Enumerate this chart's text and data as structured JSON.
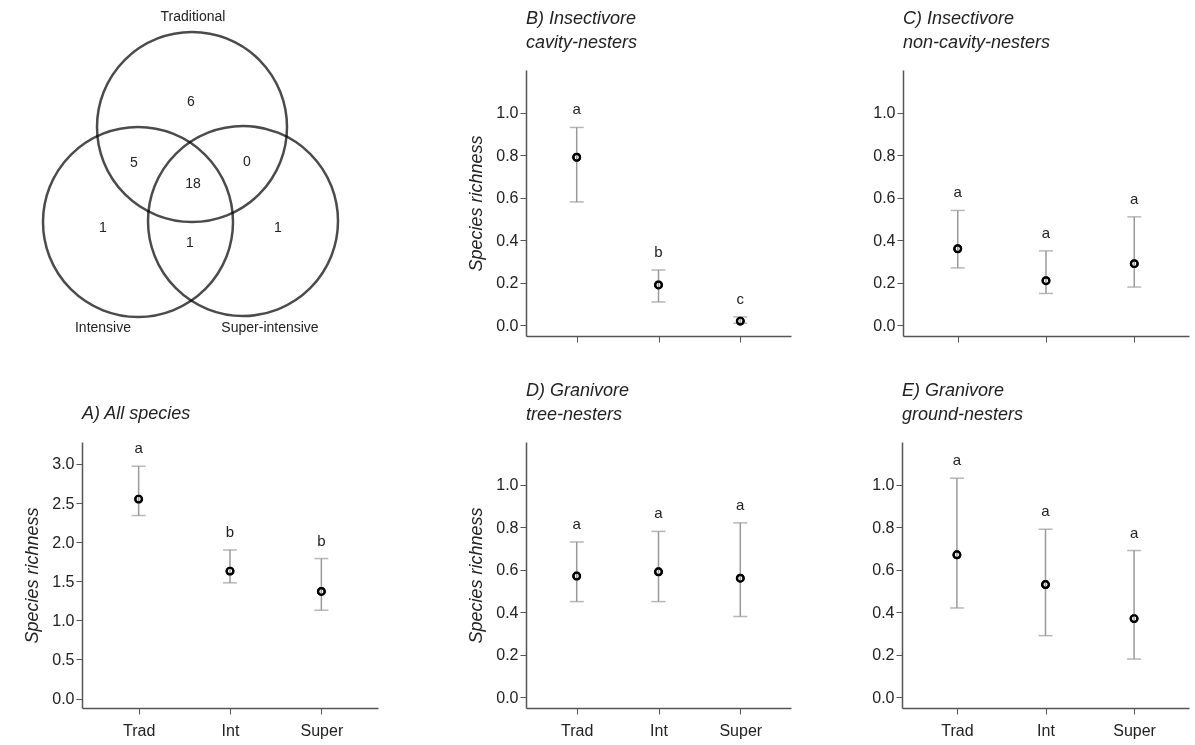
{
  "chart_data": [
    {
      "type": "other",
      "annotations": [
        "Traditional",
        "Intensive",
        "Super-intensive"
      ],
      "categories": [
        null,
        null,
        null,
        null,
        null,
        null,
        null
      ],
      "values": [
        6,
        5,
        0,
        18,
        1,
        1,
        1
      ],
      "data_labels": true
    },
    {
      "type": "scatter",
      "title": "B) Insectivore\ncavity-nesters",
      "ylabel": "Species richness",
      "categories": [
        null,
        null,
        null
      ],
      "color": "#000000",
      "marker": "circle",
      "tick_labels": "y",
      "values": [
        0.79,
        0.19,
        0.02
      ],
      "errors": [
        [
          0.58,
          0.93
        ],
        [
          0.11,
          0.26
        ],
        [
          0.01,
          0.04
        ]
      ],
      "ylim": [
        -0.05,
        1.2
      ],
      "yticks": [
        {
          "value": 0,
          "label": "0.0"
        },
        {
          "value": 0.2,
          "label": "0.2"
        },
        {
          "value": 0.4,
          "label": "0.4"
        },
        {
          "value": 0.6,
          "label": "0.6"
        },
        {
          "value": 0.8,
          "label": "0.8"
        },
        {
          "value": 1,
          "label": "1.0"
        }
      ],
      "annotations": [
        "a",
        "b",
        "c"
      ]
    },
    {
      "type": "scatter",
      "title": "C) Insectivore\nnon-cavity-nesters",
      "categories": [
        null,
        null,
        null
      ],
      "color": "#000000",
      "marker": "circle",
      "tick_labels": "y",
      "values": [
        0.36,
        0.21,
        0.29
      ],
      "errors": [
        [
          0.27,
          0.54
        ],
        [
          0.15,
          0.35
        ],
        [
          0.18,
          0.51
        ]
      ],
      "ylim": [
        -0.05,
        1.2
      ],
      "yticks": [
        {
          "value": 0,
          "label": "0.0"
        },
        {
          "value": 0.2,
          "label": "0.2"
        },
        {
          "value": 0.4,
          "label": "0.4"
        },
        {
          "value": 0.6,
          "label": "0.6"
        },
        {
          "value": 0.8,
          "label": "0.8"
        },
        {
          "value": 1,
          "label": "1.0"
        }
      ],
      "annotations": [
        "a",
        "a",
        "a"
      ]
    },
    {
      "type": "scatter",
      "title": "A) All species",
      "ylabel": "Species richness",
      "categories": [
        "Trad",
        "Int",
        "Super"
      ],
      "color": "#000000",
      "marker": "circle",
      "values": [
        2.55,
        1.63,
        1.37
      ],
      "errors": [
        [
          2.34,
          2.97
        ],
        [
          1.48,
          1.9
        ],
        [
          1.13,
          1.79
        ]
      ],
      "ylim": [
        -0.12,
        3.28
      ],
      "yticks": [
        {
          "value": 0,
          "label": "0.0"
        },
        {
          "value": 0.5,
          "label": "0.5"
        },
        {
          "value": 1,
          "label": "1.0"
        },
        {
          "value": 1.5,
          "label": "1.5"
        },
        {
          "value": 2,
          "label": "2.0"
        },
        {
          "value": 2.5,
          "label": "2.5"
        },
        {
          "value": 3,
          "label": "3.0"
        }
      ],
      "annotations": [
        "a",
        "b",
        "b"
      ]
    },
    {
      "type": "scatter",
      "title": "D) Granivore\ntree-nesters",
      "ylabel": "Species richness",
      "categories": [
        "Trad",
        "Int",
        "Super"
      ],
      "color": "#000000",
      "marker": "circle",
      "values": [
        0.57,
        0.59,
        0.56
      ],
      "errors": [
        [
          0.45,
          0.73
        ],
        [
          0.45,
          0.78
        ],
        [
          0.38,
          0.82
        ]
      ],
      "ylim": [
        -0.05,
        1.2
      ],
      "yticks": [
        {
          "value": 0,
          "label": "0.0"
        },
        {
          "value": 0.2,
          "label": "0.2"
        },
        {
          "value": 0.4,
          "label": "0.4"
        },
        {
          "value": 0.6,
          "label": "0.6"
        },
        {
          "value": 0.8,
          "label": "0.8"
        },
        {
          "value": 1,
          "label": "1.0"
        }
      ],
      "annotations": [
        "a",
        "a",
        "a"
      ]
    },
    {
      "type": "scatter",
      "title": "E) Granivore\nground-nesters",
      "categories": [
        "Trad",
        "Int",
        "Super"
      ],
      "color": "#000000",
      "marker": "circle",
      "values": [
        0.67,
        0.53,
        0.37
      ],
      "errors": [
        [
          0.42,
          1.03
        ],
        [
          0.29,
          0.79
        ],
        [
          0.18,
          0.69
        ]
      ],
      "ylim": [
        -0.05,
        1.2
      ],
      "yticks": [
        {
          "value": 0,
          "label": "0.0"
        },
        {
          "value": 0.2,
          "label": "0.2"
        },
        {
          "value": 0.4,
          "label": "0.4"
        },
        {
          "value": 0.6,
          "label": "0.6"
        },
        {
          "value": 0.8,
          "label": "0.8"
        },
        {
          "value": 1,
          "label": "1.0"
        }
      ],
      "annotations": [
        "a",
        "a",
        "a"
      ]
    }
  ]
}
